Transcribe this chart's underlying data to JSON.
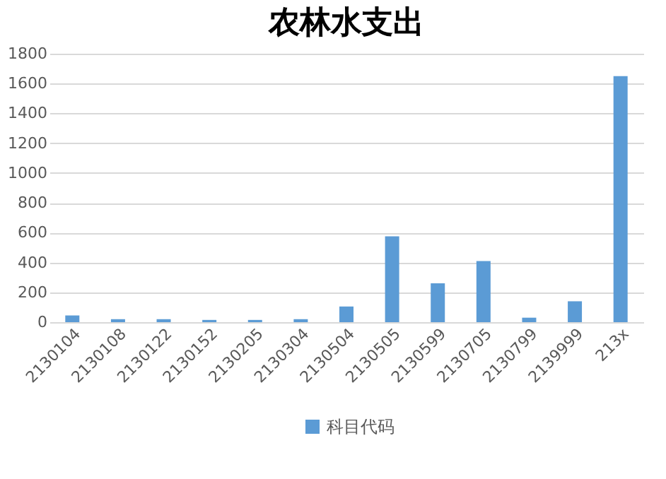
{
  "chart_data": {
    "type": "bar",
    "title": "农林水支出",
    "categories": [
      "2130104",
      "2130108",
      "2130122",
      "2130152",
      "2130205",
      "2130304",
      "2130504",
      "2130505",
      "2130599",
      "2130705",
      "2130799",
      "2139999",
      "213x"
    ],
    "series": [
      {
        "name": "科目代码",
        "color": "#5b9bd5",
        "values": [
          45,
          20,
          20,
          15,
          15,
          20,
          105,
          575,
          260,
          410,
          30,
          140,
          1650
        ]
      }
    ],
    "ylim": [
      0,
      1800
    ],
    "yticks": [
      0,
      200,
      400,
      600,
      800,
      1000,
      1200,
      1400,
      1600,
      1800
    ],
    "grid": "y",
    "legend": "bottom"
  }
}
